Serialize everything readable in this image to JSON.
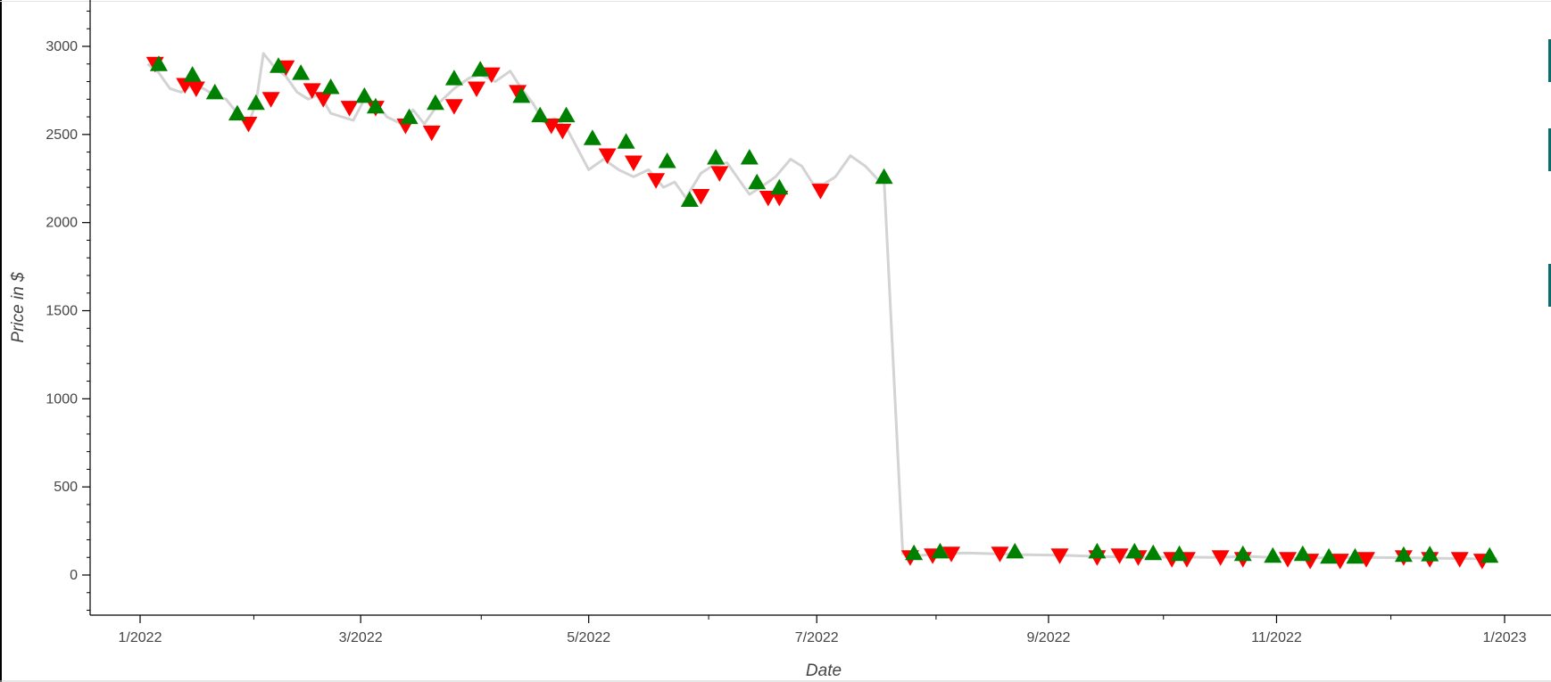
{
  "chart_data": {
    "type": "line",
    "title": "",
    "xlabel": "Date",
    "ylabel": "Price in $",
    "x_ticks": [
      "1/2022",
      "3/2022",
      "5/2022",
      "7/2022",
      "9/2022",
      "11/2022",
      "1/2023"
    ],
    "y_ticks": [
      "0",
      "500",
      "1000",
      "1500",
      "2000",
      "2500",
      "3000"
    ],
    "xlim": [
      "2021-12-20",
      "2023-01-15"
    ],
    "ylim": [
      -200,
      3250
    ],
    "grid": false,
    "legend": "none",
    "colors": {
      "price_line": "#d3d3d3",
      "buy_marker": "#008000",
      "sell_marker": "#ff0000",
      "axis": "#000000"
    },
    "series": [
      {
        "type": "line",
        "points": [
          [
            "2022-01-03",
            2900
          ],
          [
            "2022-01-06",
            2850
          ],
          [
            "2022-01-09",
            2760
          ],
          [
            "2022-01-12",
            2740
          ],
          [
            "2022-01-15",
            2780
          ],
          [
            "2022-01-18",
            2760
          ],
          [
            "2022-01-21",
            2720
          ],
          [
            "2022-01-24",
            2700
          ],
          [
            "2022-01-27",
            2620
          ],
          [
            "2022-01-30",
            2560
          ],
          [
            "2022-02-01",
            2680
          ],
          [
            "2022-02-03",
            2960
          ],
          [
            "2022-02-06",
            2880
          ],
          [
            "2022-02-09",
            2830
          ],
          [
            "2022-02-12",
            2740
          ],
          [
            "2022-02-15",
            2700
          ],
          [
            "2022-02-18",
            2730
          ],
          [
            "2022-02-21",
            2620
          ],
          [
            "2022-02-24",
            2600
          ],
          [
            "2022-02-27",
            2580
          ],
          [
            "2022-03-02",
            2700
          ],
          [
            "2022-03-05",
            2680
          ],
          [
            "2022-03-08",
            2600
          ],
          [
            "2022-03-12",
            2560
          ],
          [
            "2022-03-15",
            2640
          ],
          [
            "2022-03-18",
            2560
          ],
          [
            "2022-03-22",
            2680
          ],
          [
            "2022-03-26",
            2760
          ],
          [
            "2022-03-30",
            2820
          ],
          [
            "2022-04-02",
            2840
          ],
          [
            "2022-04-06",
            2800
          ],
          [
            "2022-04-10",
            2860
          ],
          [
            "2022-04-13",
            2760
          ],
          [
            "2022-04-16",
            2680
          ],
          [
            "2022-04-19",
            2570
          ],
          [
            "2022-04-22",
            2590
          ],
          [
            "2022-04-25",
            2540
          ],
          [
            "2022-04-28",
            2420
          ],
          [
            "2022-05-01",
            2300
          ],
          [
            "2022-05-05",
            2360
          ],
          [
            "2022-05-09",
            2300
          ],
          [
            "2022-05-13",
            2260
          ],
          [
            "2022-05-17",
            2300
          ],
          [
            "2022-05-21",
            2200
          ],
          [
            "2022-05-24",
            2230
          ],
          [
            "2022-05-27",
            2140
          ],
          [
            "2022-05-31",
            2280
          ],
          [
            "2022-06-03",
            2320
          ],
          [
            "2022-06-07",
            2340
          ],
          [
            "2022-06-10",
            2250
          ],
          [
            "2022-06-13",
            2160
          ],
          [
            "2022-06-16",
            2200
          ],
          [
            "2022-06-20",
            2260
          ],
          [
            "2022-06-24",
            2360
          ],
          [
            "2022-06-27",
            2320
          ],
          [
            "2022-06-30",
            2220
          ],
          [
            "2022-07-03",
            2220
          ],
          [
            "2022-07-06",
            2260
          ],
          [
            "2022-07-10",
            2380
          ],
          [
            "2022-07-14",
            2320
          ],
          [
            "2022-07-18",
            2230
          ],
          [
            "2022-07-19",
            2250
          ],
          [
            "2022-07-24",
            120
          ],
          [
            "2022-07-28",
            110
          ],
          [
            "2022-08-03",
            120
          ],
          [
            "2022-08-10",
            125
          ],
          [
            "2022-08-18",
            120
          ],
          [
            "2022-08-26",
            115
          ],
          [
            "2022-09-05",
            112
          ],
          [
            "2022-09-15",
            105
          ],
          [
            "2022-09-25",
            100
          ],
          [
            "2022-10-05",
            102
          ],
          [
            "2022-10-15",
            100
          ],
          [
            "2022-10-25",
            105
          ],
          [
            "2022-11-05",
            95
          ],
          [
            "2022-11-15",
            98
          ],
          [
            "2022-11-25",
            100
          ],
          [
            "2022-12-05",
            98
          ],
          [
            "2022-12-15",
            95
          ],
          [
            "2022-12-25",
            92
          ],
          [
            "2022-12-30",
            92
          ]
        ]
      },
      {
        "type": "scatter",
        "marker": "triangle",
        "points": [
          [
            "2022-01-06",
            2900
          ],
          [
            "2022-01-15",
            2840
          ],
          [
            "2022-01-21",
            2740
          ],
          [
            "2022-01-27",
            2620
          ],
          [
            "2022-02-01",
            2680
          ],
          [
            "2022-02-07",
            2890
          ],
          [
            "2022-02-13",
            2850
          ],
          [
            "2022-02-21",
            2770
          ],
          [
            "2022-03-02",
            2720
          ],
          [
            "2022-03-05",
            2660
          ],
          [
            "2022-03-14",
            2600
          ],
          [
            "2022-03-21",
            2680
          ],
          [
            "2022-03-26",
            2820
          ],
          [
            "2022-04-02",
            2870
          ],
          [
            "2022-04-13",
            2720
          ],
          [
            "2022-04-18",
            2610
          ],
          [
            "2022-04-25",
            2610
          ],
          [
            "2022-05-02",
            2480
          ],
          [
            "2022-05-11",
            2460
          ],
          [
            "2022-05-22",
            2350
          ],
          [
            "2022-05-28",
            2130
          ],
          [
            "2022-06-04",
            2370
          ],
          [
            "2022-06-13",
            2370
          ],
          [
            "2022-06-15",
            2230
          ],
          [
            "2022-06-21",
            2200
          ],
          [
            "2022-07-19",
            2260
          ],
          [
            "2022-07-27",
            125
          ],
          [
            "2022-08-03",
            135
          ],
          [
            "2022-08-23",
            135
          ],
          [
            "2022-09-14",
            135
          ],
          [
            "2022-09-24",
            135
          ],
          [
            "2022-09-29",
            125
          ],
          [
            "2022-10-06",
            120
          ],
          [
            "2022-10-23",
            120
          ],
          [
            "2022-10-31",
            110
          ],
          [
            "2022-11-08",
            120
          ],
          [
            "2022-11-15",
            105
          ],
          [
            "2022-11-22",
            105
          ],
          [
            "2022-12-05",
            115
          ],
          [
            "2022-12-12",
            118
          ],
          [
            "2022-12-28",
            110
          ]
        ]
      },
      {
        "type": "scatter",
        "marker": "inverted_triangle",
        "points": [
          [
            "2022-01-05",
            2900
          ],
          [
            "2022-01-13",
            2780
          ],
          [
            "2022-01-16",
            2760
          ],
          [
            "2022-01-30",
            2560
          ],
          [
            "2022-02-05",
            2700
          ],
          [
            "2022-02-09",
            2880
          ],
          [
            "2022-02-16",
            2750
          ],
          [
            "2022-02-19",
            2700
          ],
          [
            "2022-02-26",
            2650
          ],
          [
            "2022-03-05",
            2650
          ],
          [
            "2022-03-13",
            2550
          ],
          [
            "2022-03-20",
            2510
          ],
          [
            "2022-03-26",
            2660
          ],
          [
            "2022-04-01",
            2760
          ],
          [
            "2022-04-05",
            2840
          ],
          [
            "2022-04-12",
            2740
          ],
          [
            "2022-04-21",
            2550
          ],
          [
            "2022-04-24",
            2520
          ],
          [
            "2022-05-06",
            2380
          ],
          [
            "2022-05-13",
            2340
          ],
          [
            "2022-05-19",
            2240
          ],
          [
            "2022-05-31",
            2150
          ],
          [
            "2022-06-05",
            2280
          ],
          [
            "2022-06-18",
            2140
          ],
          [
            "2022-06-21",
            2140
          ],
          [
            "2022-07-02",
            2180
          ],
          [
            "2022-07-26",
            100
          ],
          [
            "2022-08-01",
            110
          ],
          [
            "2022-08-06",
            120
          ],
          [
            "2022-08-19",
            120
          ],
          [
            "2022-09-04",
            110
          ],
          [
            "2022-09-14",
            100
          ],
          [
            "2022-09-20",
            110
          ],
          [
            "2022-09-25",
            100
          ],
          [
            "2022-10-04",
            90
          ],
          [
            "2022-10-08",
            90
          ],
          [
            "2022-10-17",
            100
          ],
          [
            "2022-10-23",
            90
          ],
          [
            "2022-11-04",
            90
          ],
          [
            "2022-11-10",
            80
          ],
          [
            "2022-11-18",
            80
          ],
          [
            "2022-11-25",
            90
          ],
          [
            "2022-12-05",
            100
          ],
          [
            "2022-12-12",
            90
          ],
          [
            "2022-12-20",
            90
          ],
          [
            "2022-12-26",
            80
          ]
        ]
      }
    ]
  }
}
